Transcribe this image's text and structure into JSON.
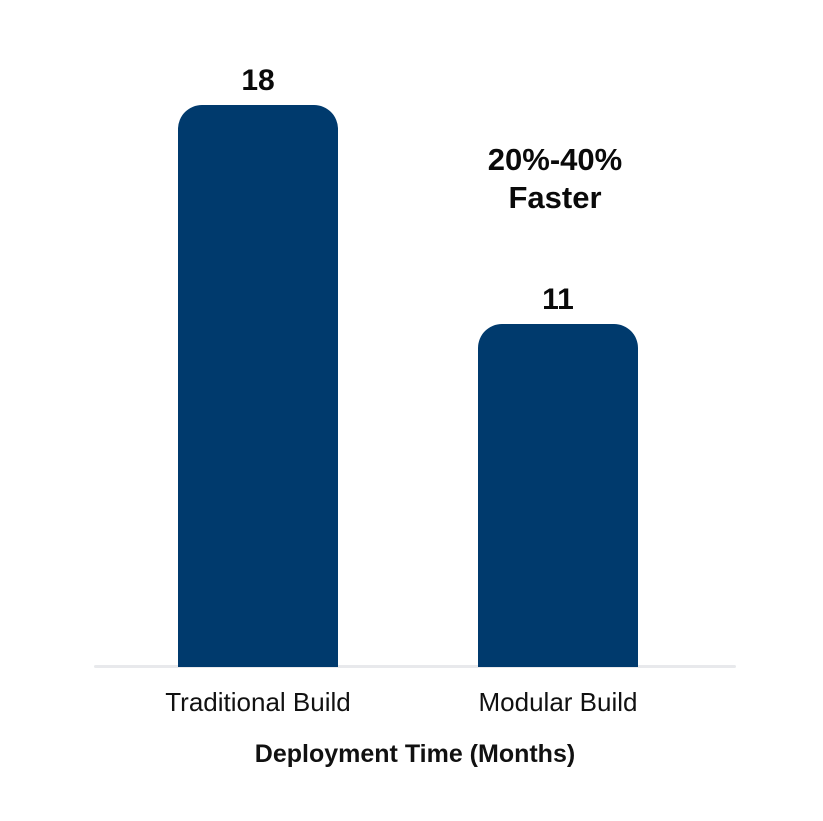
{
  "chart_data": {
    "type": "bar",
    "categories": [
      "Traditional Build",
      "Modular Build"
    ],
    "values": [
      18,
      11
    ],
    "value_labels": [
      "18",
      "11"
    ],
    "title": "",
    "xlabel": "Deployment Time (Months)",
    "ylabel": "",
    "ylim": [
      0,
      18
    ],
    "grid": false,
    "legend": false,
    "annotation": "20%-40% Faster",
    "bar_color": "#003a6d",
    "axis_line_color": "#e8e9ec"
  },
  "bars": [
    {
      "value": "18",
      "label": "Traditional Build"
    },
    {
      "value": "11",
      "label": "Modular Build"
    }
  ],
  "annotation": {
    "line1": "20%-40%",
    "line2": "Faster"
  },
  "axis": {
    "xlabel": "Deployment Time (Months)"
  }
}
